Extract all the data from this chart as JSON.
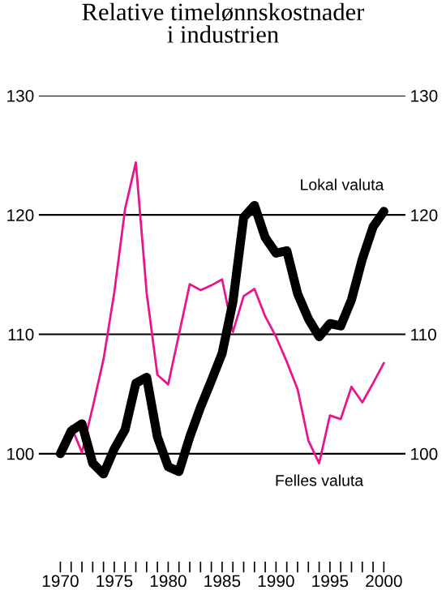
{
  "chart_data": {
    "type": "line",
    "title": "Relative timelønnskostnader\ni industrien",
    "x": [
      1970,
      1971,
      1972,
      1973,
      1974,
      1975,
      1976,
      1977,
      1978,
      1979,
      1980,
      1981,
      1982,
      1983,
      1984,
      1985,
      1986,
      1987,
      1988,
      1989,
      1990,
      1991,
      1992,
      1993,
      1994,
      1995,
      1996,
      1997,
      1998,
      1999,
      2000
    ],
    "series": [
      {
        "name": "Felles valuta",
        "color": "#e8168c",
        "values": [
          100,
          102.3,
          100.1,
          103.9,
          107.9,
          113.5,
          120.5,
          124.4,
          113.5,
          106.6,
          105.8,
          110,
          114.2,
          113.7,
          114.1,
          114.6,
          110.2,
          113.2,
          113.8,
          111.5,
          109.8,
          107.7,
          105.4,
          101.1,
          99.2,
          103.2,
          102.9,
          105.6,
          104.3,
          105.9,
          107.6
        ]
      },
      {
        "name": "Lokal valuta",
        "color": "#000000",
        "values": [
          100,
          101.9,
          102.5,
          99.2,
          98.3,
          100.4,
          102,
          105.9,
          106.4,
          101.4,
          98.9,
          98.5,
          101.4,
          103.9,
          106.1,
          108.4,
          112.7,
          119.8,
          120.8,
          118.1,
          116.8,
          117,
          113.4,
          111.3,
          109.8,
          110.9,
          110.7,
          112.9,
          116.3,
          119,
          120.3
        ]
      }
    ],
    "xlim": [
      1968,
      2002
    ],
    "xticks": [
      1970,
      {
        "value": 1971,
        "label": null
      },
      {
        "value": 1972,
        "label": null
      },
      {
        "value": 1973,
        "label": null
      },
      {
        "value": 1974,
        "label": null
      },
      1975,
      {
        "value": 1976,
        "label": null
      },
      {
        "value": 1977,
        "label": null
      },
      {
        "value": 1978,
        "label": null
      },
      {
        "value": 1979,
        "label": null
      },
      1980,
      {
        "value": 1981,
        "label": null
      },
      {
        "value": 1982,
        "label": null
      },
      {
        "value": 1983,
        "label": null
      },
      {
        "value": 1984,
        "label": null
      },
      1985,
      {
        "value": 1986,
        "label": null
      },
      {
        "value": 1987,
        "label": null
      },
      {
        "value": 1988,
        "label": null
      },
      {
        "value": 1989,
        "label": null
      },
      1990,
      {
        "value": 1991,
        "label": null
      },
      {
        "value": 1992,
        "label": null
      },
      {
        "value": 1993,
        "label": null
      },
      {
        "value": 1994,
        "label": null
      },
      1995,
      {
        "value": 1996,
        "label": null
      },
      {
        "value": 1997,
        "label": null
      },
      {
        "value": 1998,
        "label": null
      },
      {
        "value": 1999,
        "label": null
      },
      2000
    ],
    "ylim": [
      91,
      130
    ],
    "yticks": [
      100,
      110,
      120,
      130
    ],
    "y2lim": [
      91,
      130
    ],
    "y2ticks": [
      100,
      110,
      120,
      130
    ],
    "grid": "y",
    "legend": false,
    "marker": "none",
    "line_style": "solid"
  }
}
